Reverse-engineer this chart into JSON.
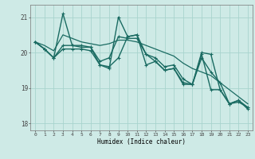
{
  "xlabel": "Humidex (Indice chaleur)",
  "bg_color": "#ceeae6",
  "grid_color": "#a8d4ce",
  "line_color": "#1a6b62",
  "xlim": [
    -0.5,
    23.5
  ],
  "ylim": [
    17.8,
    21.35
  ],
  "yticks": [
    18,
    19,
    20,
    21
  ],
  "xticks": [
    0,
    1,
    2,
    3,
    4,
    5,
    6,
    7,
    8,
    9,
    10,
    11,
    12,
    13,
    14,
    15,
    16,
    17,
    18,
    19,
    20,
    21,
    22,
    23
  ],
  "series": [
    {
      "y": [
        20.3,
        20.1,
        19.85,
        21.1,
        20.2,
        20.15,
        20.15,
        19.65,
        19.6,
        19.85,
        20.45,
        20.5,
        19.65,
        19.75,
        19.5,
        19.55,
        19.1,
        19.1,
        20.0,
        19.95,
        18.95,
        18.55,
        18.6,
        18.45
      ],
      "marker": true,
      "linewidth": 1.0
    },
    {
      "y": [
        20.3,
        20.2,
        20.05,
        20.5,
        20.4,
        20.3,
        20.25,
        20.2,
        20.25,
        20.35,
        20.35,
        20.3,
        20.2,
        20.1,
        20.0,
        19.9,
        19.7,
        19.55,
        19.45,
        19.35,
        19.15,
        18.95,
        18.75,
        18.55
      ],
      "marker": false,
      "linewidth": 0.9
    },
    {
      "y": [
        20.3,
        20.1,
        19.85,
        20.1,
        20.1,
        20.1,
        20.05,
        19.65,
        19.55,
        21.0,
        20.45,
        20.5,
        19.95,
        19.75,
        19.5,
        19.55,
        19.15,
        19.1,
        19.95,
        18.95,
        18.95,
        18.55,
        18.65,
        18.45
      ],
      "marker": true,
      "linewidth": 1.0
    },
    {
      "y": [
        20.3,
        20.1,
        19.85,
        20.2,
        20.2,
        20.2,
        20.15,
        19.75,
        19.85,
        20.45,
        20.4,
        20.4,
        19.95,
        19.85,
        19.6,
        19.65,
        19.25,
        19.1,
        19.85,
        19.45,
        19.15,
        18.55,
        18.65,
        18.4
      ],
      "marker": true,
      "linewidth": 1.0
    }
  ]
}
